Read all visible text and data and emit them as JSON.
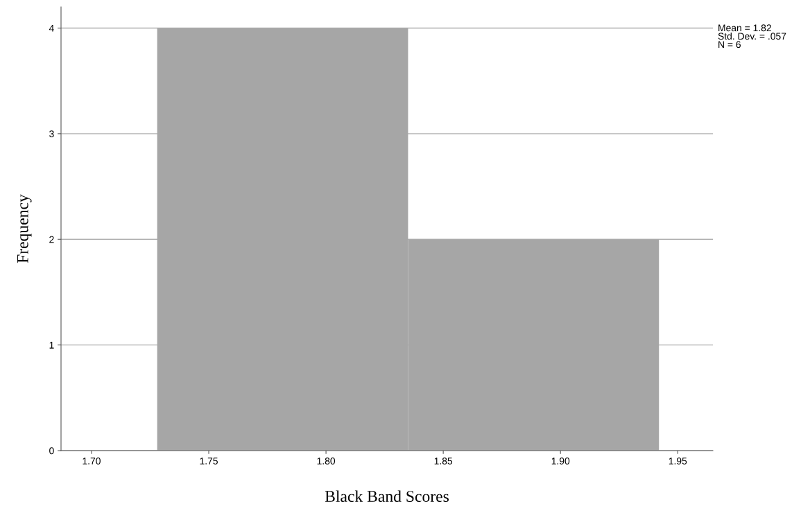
{
  "chart_data": {
    "type": "histogram",
    "xlabel": "Black Band Scores",
    "ylabel": "Frequency",
    "bins": [
      1.728,
      1.835,
      1.942
    ],
    "values": [
      4,
      2
    ],
    "color": "#a6a6a6",
    "xlim": [
      1.687,
      1.965
    ],
    "xticks": [
      {
        "value": 1.7,
        "label": "1.70"
      },
      {
        "value": 1.75,
        "label": "1.75"
      },
      {
        "value": 1.8,
        "label": "1.80"
      },
      {
        "value": 1.85,
        "label": "1.85"
      },
      {
        "value": 1.9,
        "label": "1.90"
      },
      {
        "value": 1.95,
        "label": "1.95"
      }
    ],
    "ylim": [
      0,
      4.2
    ],
    "yticks": [
      0,
      1,
      2,
      3,
      4
    ],
    "grid": "y",
    "annotations": [
      "Mean = 1.82\nStd. Dev. = .057\nN = 6"
    ]
  }
}
